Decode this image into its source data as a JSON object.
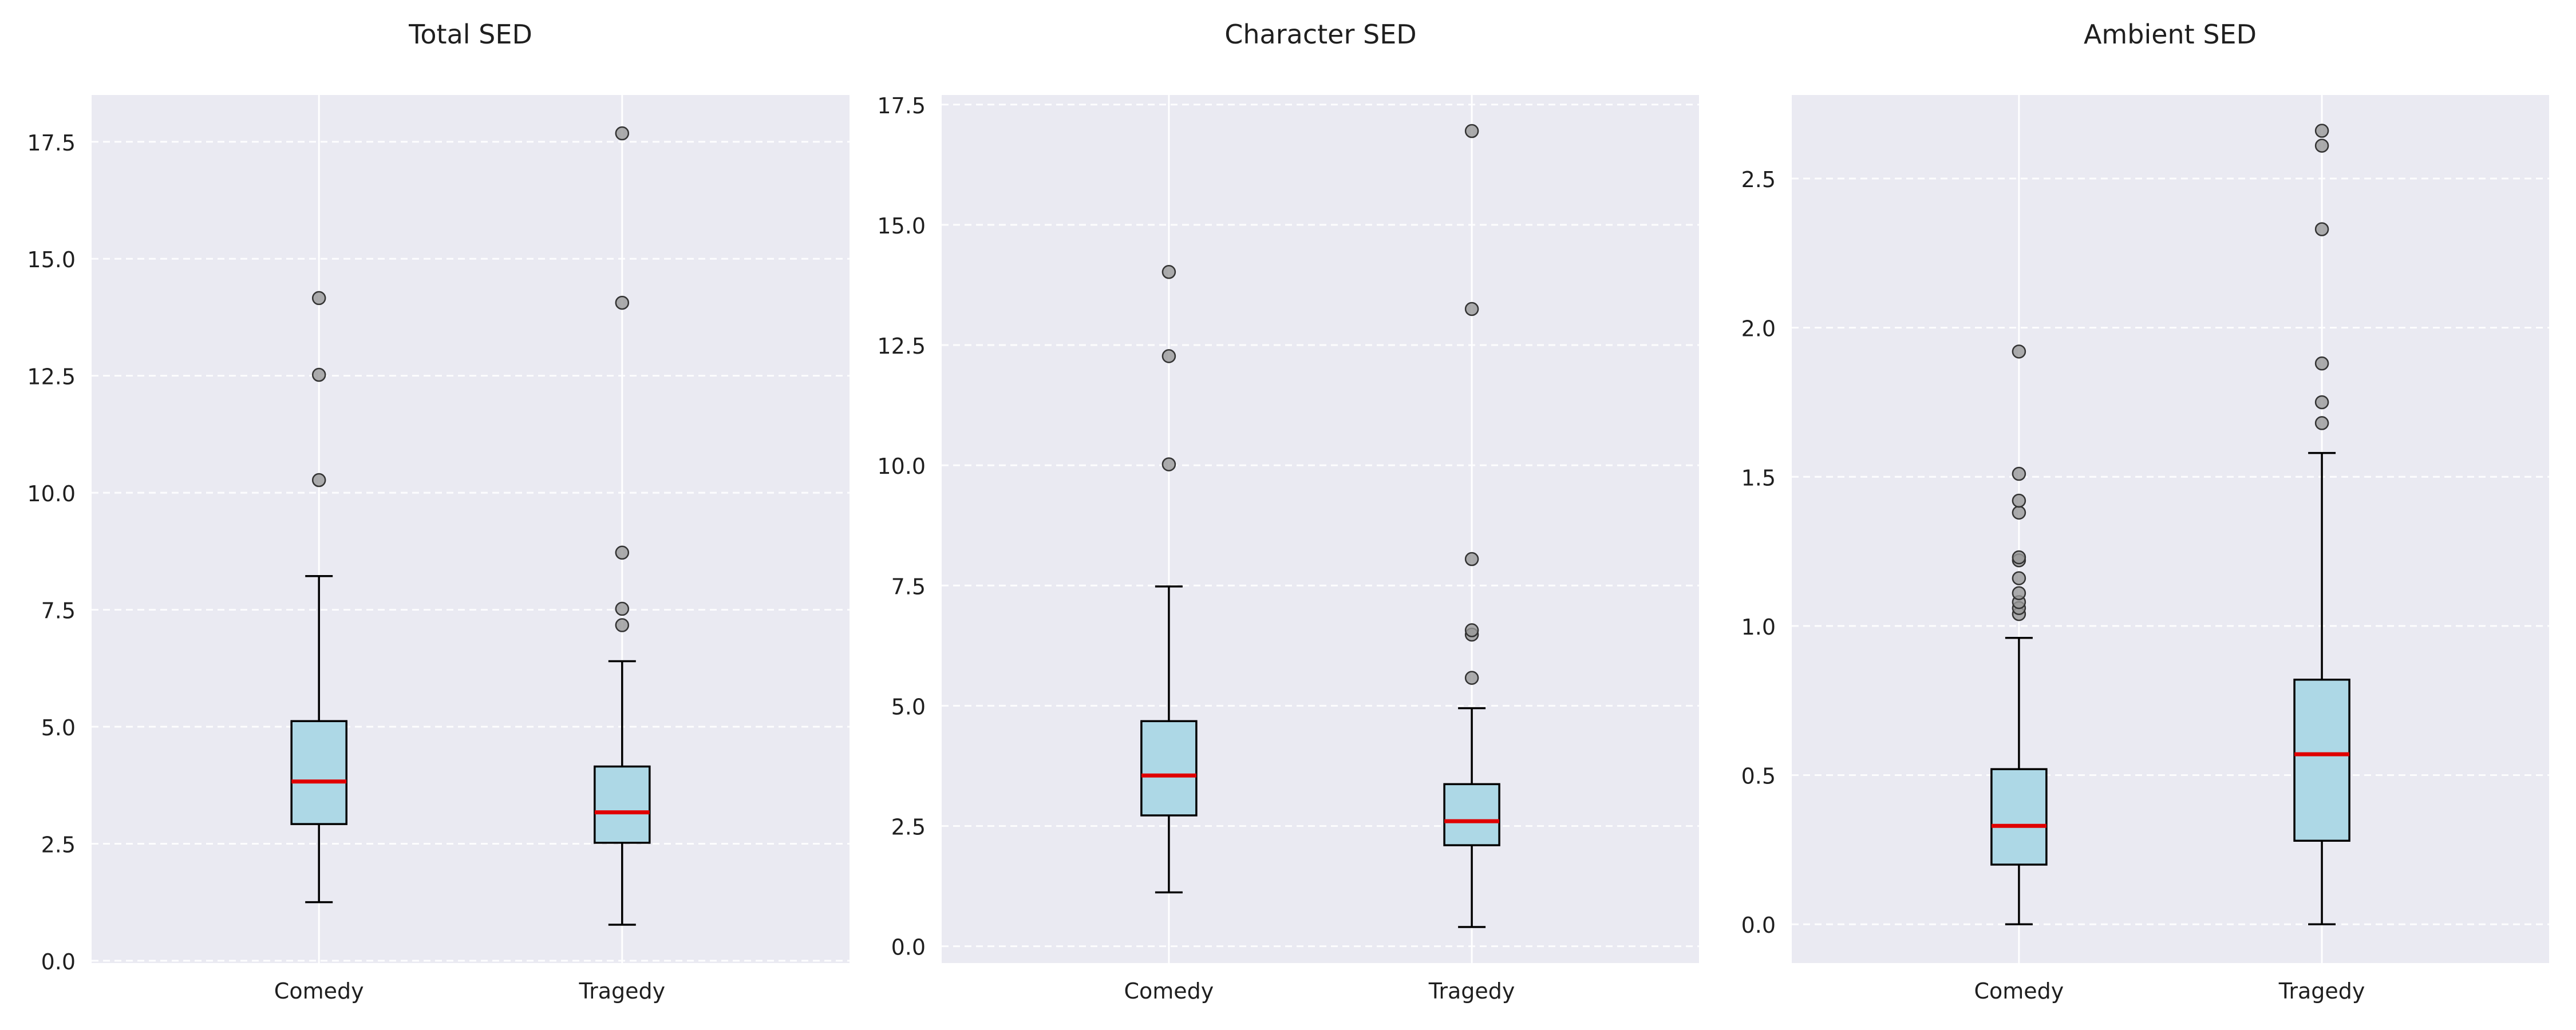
{
  "chart_data": [
    {
      "type": "box",
      "title": "Total SED",
      "categories": [
        "Comedy",
        "Tragedy"
      ],
      "ylim": [
        -0.05,
        18.5
      ],
      "yticks": [
        "0.0",
        "2.5",
        "5.0",
        "7.5",
        "10.0",
        "12.5",
        "15.0",
        "17.5"
      ],
      "grid": true,
      "boxes": [
        {
          "category": "Comedy",
          "whisker_low": 1.25,
          "q1": 2.92,
          "median": 3.83,
          "q3": 5.12,
          "whisker_high": 8.22,
          "outliers": [
            10.27,
            12.52,
            14.16
          ]
        },
        {
          "category": "Tragedy",
          "whisker_low": 0.77,
          "q1": 2.52,
          "median": 3.17,
          "q3": 4.15,
          "whisker_high": 6.4,
          "outliers": [
            7.17,
            7.52,
            8.72,
            14.06,
            17.68
          ]
        }
      ]
    },
    {
      "type": "box",
      "title": "Character SED",
      "categories": [
        "Comedy",
        "Tragedy"
      ],
      "ylim": [
        -0.35,
        17.7
      ],
      "yticks": [
        "0.0",
        "2.5",
        "5.0",
        "7.5",
        "10.0",
        "12.5",
        "15.0",
        "17.5"
      ],
      "grid": true,
      "boxes": [
        {
          "category": "Comedy",
          "whisker_low": 1.12,
          "q1": 2.72,
          "median": 3.55,
          "q3": 4.68,
          "whisker_high": 7.48,
          "outliers": [
            10.02,
            12.27,
            14.02
          ]
        },
        {
          "category": "Tragedy",
          "whisker_low": 0.4,
          "q1": 2.1,
          "median": 2.6,
          "q3": 3.37,
          "whisker_high": 4.95,
          "outliers": [
            5.58,
            6.48,
            6.57,
            8.05,
            13.25,
            16.95
          ]
        }
      ]
    },
    {
      "type": "box",
      "title": "Ambient SED",
      "categories": [
        "Comedy",
        "Tragedy"
      ],
      "ylim": [
        -0.13,
        2.78
      ],
      "yticks": [
        "0.0",
        "0.5",
        "1.0",
        "1.5",
        "2.0",
        "2.5"
      ],
      "grid": true,
      "boxes": [
        {
          "category": "Comedy",
          "whisker_low": 0.0,
          "q1": 0.2,
          "median": 0.33,
          "q3": 0.52,
          "whisker_high": 0.96,
          "outliers": [
            1.04,
            1.06,
            1.08,
            1.11,
            1.16,
            1.22,
            1.23,
            1.38,
            1.42,
            1.51,
            1.92
          ]
        },
        {
          "category": "Tragedy",
          "whisker_low": 0.0,
          "q1": 0.28,
          "median": 0.57,
          "q3": 0.82,
          "whisker_high": 1.58,
          "outliers": [
            1.68,
            1.75,
            1.88,
            2.33,
            2.61,
            2.66
          ]
        }
      ]
    }
  ],
  "colors": {
    "plot_background": "#eaeaf2",
    "box_fill": "#add8e6",
    "median_line": "#e00000",
    "outlier_fill": "#999999",
    "outline": "#000000",
    "grid": "#ffffff"
  }
}
